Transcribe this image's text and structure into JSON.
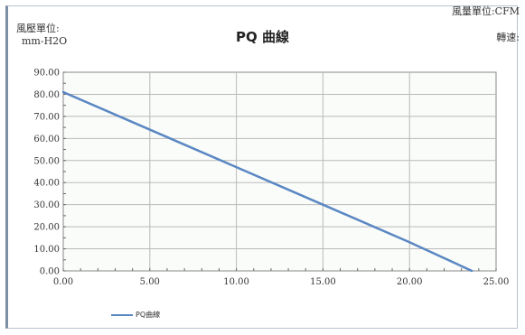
{
  "header": {
    "flow_unit_label": "風量單位:CFM",
    "pressure_unit_label": "風壓單位:",
    "pressure_unit_value": "mm-H2O",
    "speed_label": "轉速:"
  },
  "chart_data": {
    "type": "line",
    "title": "PQ 曲線",
    "xlabel": "",
    "ylabel": "",
    "xlim": [
      0,
      25
    ],
    "ylim": [
      0,
      90
    ],
    "x_ticks": [
      0,
      5,
      10,
      15,
      20,
      25
    ],
    "y_ticks": [
      0,
      10,
      20,
      30,
      40,
      50,
      60,
      70,
      80,
      90
    ],
    "x_tick_labels": [
      "0.00",
      "5.00",
      "10.00",
      "15.00",
      "20.00",
      "25.00"
    ],
    "y_tick_labels": [
      "0.00",
      "10.00",
      "20.00",
      "30.00",
      "40.00",
      "50.00",
      "60.00",
      "70.00",
      "80.00",
      "90.00"
    ],
    "grid": true,
    "legend_position": "bottom-left",
    "series": [
      {
        "name": "PQ曲線",
        "color": "#5a87c2",
        "x": [
          0,
          5,
          10,
          15,
          20,
          23.6
        ],
        "y": [
          81,
          64,
          47,
          30,
          13,
          0
        ]
      }
    ]
  }
}
